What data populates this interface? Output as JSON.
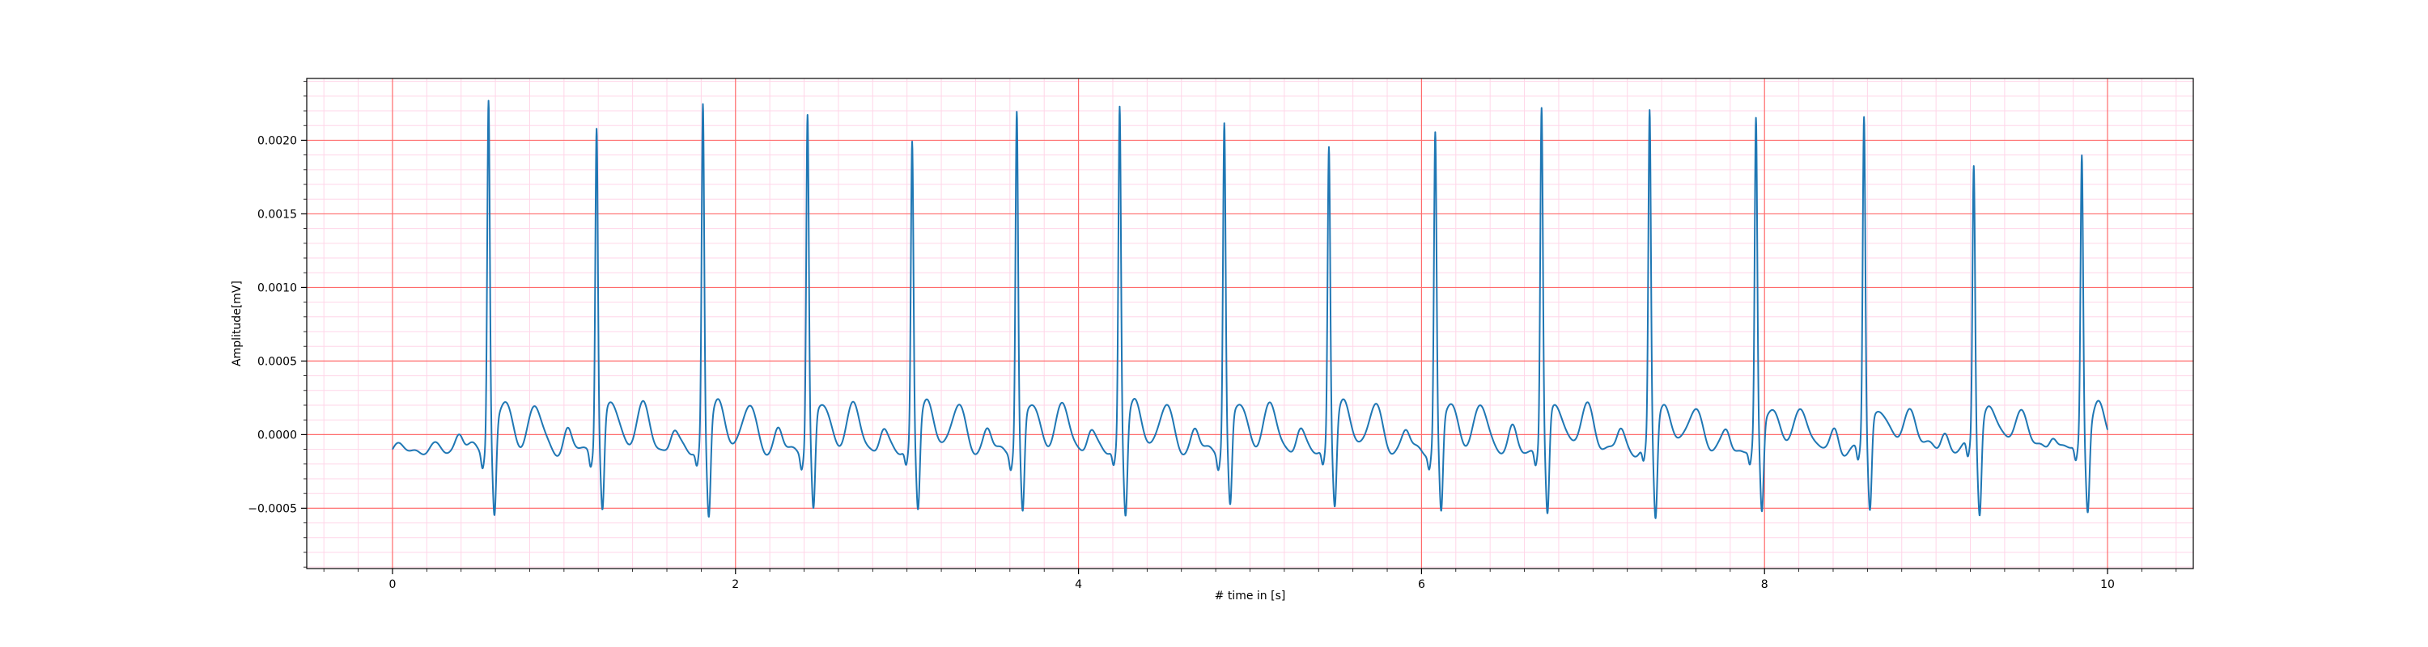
{
  "chart_data": {
    "type": "line",
    "title": "",
    "xlabel": "# time in [s]",
    "ylabel": "Amplitude[mV]",
    "xlim": [
      -0.5,
      10.5
    ],
    "ylim": [
      -0.00091,
      0.00242
    ],
    "xticks": [
      0,
      2,
      4,
      6,
      8,
      10
    ],
    "xtick_labels": [
      "0",
      "2",
      "4",
      "6",
      "8",
      "10"
    ],
    "yticks": [
      -0.0005,
      0.0,
      0.0005,
      0.001,
      0.0015,
      0.002
    ],
    "ytick_labels": [
      "−0.0005",
      "0.0000",
      "0.0005",
      "0.0010",
      "0.0015",
      "0.0020"
    ],
    "grid": {
      "major": true,
      "minor": true,
      "major_color": "#ff6b6b",
      "minor_color": "#ffd6e8"
    },
    "line_color": "#1f77b4",
    "series": [
      {
        "x_start": 0.0,
        "x_end": 10.0,
        "baseline": -0.0001,
        "beats": [
          {
            "t": 0.56,
            "r": 0.00225,
            "s": -0.00072
          },
          {
            "t": 1.19,
            "r": 0.00208,
            "s": -0.0007
          },
          {
            "t": 1.81,
            "r": 0.00221,
            "s": -0.00073
          },
          {
            "t": 2.42,
            "r": 0.00215,
            "s": -0.00071
          },
          {
            "t": 3.03,
            "r": 0.00196,
            "s": -0.00068
          },
          {
            "t": 3.64,
            "r": 0.00216,
            "s": -0.00073
          },
          {
            "t": 4.24,
            "r": 0.0022,
            "s": -0.00072
          },
          {
            "t": 4.85,
            "r": 0.00209,
            "s": -0.00068
          },
          {
            "t": 5.46,
            "r": 0.00193,
            "s": -0.00066
          },
          {
            "t": 6.08,
            "r": 0.002,
            "s": -0.00072
          },
          {
            "t": 6.7,
            "r": 0.00219,
            "s": -0.00075
          },
          {
            "t": 7.33,
            "r": 0.00214,
            "s": -0.00075
          },
          {
            "t": 7.95,
            "r": 0.00207,
            "s": -0.00072
          },
          {
            "t": 8.58,
            "r": 0.00211,
            "s": -0.0007
          },
          {
            "t": 9.22,
            "r": 0.0018,
            "s": -0.00069
          },
          {
            "t": 9.85,
            "r": 0.00186,
            "s": -0.00065
          }
        ]
      }
    ]
  }
}
